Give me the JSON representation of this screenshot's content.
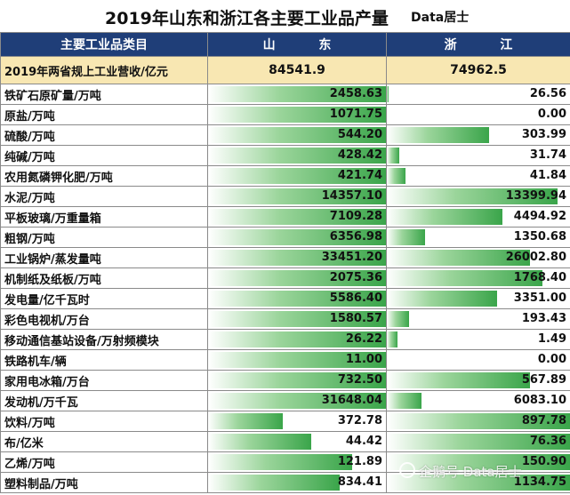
{
  "header": {
    "title": "2019年山东和浙江各主要工业品产量",
    "brand": "Data居士"
  },
  "columns": {
    "category": "主要工业品类目",
    "shandong": "山          东",
    "zhejiang": "浙          江"
  },
  "summary": {
    "label": "2019年两省规上工业营收/亿元",
    "shandong": "84541.9",
    "zhejiang": "74962.5"
  },
  "rows": [
    {
      "name": "铁矿石原矿量/万吨",
      "sd": "2458.63",
      "zj": "26.56",
      "sd_fill": 1.0,
      "zj_fill": 0.01
    },
    {
      "name": "原盐/万吨",
      "sd": "1071.75",
      "zj": "0.00",
      "sd_fill": 1.0,
      "zj_fill": 0.0
    },
    {
      "name": "硫酸/万吨",
      "sd": "544.20",
      "zj": "303.99",
      "sd_fill": 1.0,
      "zj_fill": 0.56
    },
    {
      "name": "纯碱/万吨",
      "sd": "428.42",
      "zj": "31.74",
      "sd_fill": 1.0,
      "zj_fill": 0.07
    },
    {
      "name": "农用氮磷钾化肥/万吨",
      "sd": "421.74",
      "zj": "41.84",
      "sd_fill": 1.0,
      "zj_fill": 0.1
    },
    {
      "name": "水泥/万吨",
      "sd": "14357.10",
      "zj": "13399.94",
      "sd_fill": 1.0,
      "zj_fill": 0.93
    },
    {
      "name": "平板玻璃/万重量箱",
      "sd": "7109.28",
      "zj": "4494.92",
      "sd_fill": 1.0,
      "zj_fill": 0.63
    },
    {
      "name": "粗钢/万吨",
      "sd": "6356.98",
      "zj": "1350.68",
      "sd_fill": 1.0,
      "zj_fill": 0.21
    },
    {
      "name": "工业锅炉/蒸发量吨",
      "sd": "33451.20",
      "zj": "26002.80",
      "sd_fill": 1.0,
      "zj_fill": 0.78
    },
    {
      "name": "机制纸及纸板/万吨",
      "sd": "2075.36",
      "zj": "1768.40",
      "sd_fill": 1.0,
      "zj_fill": 0.85
    },
    {
      "name": "发电量/亿千瓦时",
      "sd": "5586.40",
      "zj": "3351.00",
      "sd_fill": 1.0,
      "zj_fill": 0.6
    },
    {
      "name": "彩色电视机/万台",
      "sd": "1580.57",
      "zj": "193.43",
      "sd_fill": 1.0,
      "zj_fill": 0.12
    },
    {
      "name": "移动通信基站设备/万射频模块",
      "sd": "26.22",
      "zj": "1.49",
      "sd_fill": 1.0,
      "zj_fill": 0.06
    },
    {
      "name": "铁路机车/辆",
      "sd": "11.00",
      "zj": "0.00",
      "sd_fill": 1.0,
      "zj_fill": 0.0
    },
    {
      "name": "家用电冰箱/万台",
      "sd": "732.50",
      "zj": "567.89",
      "sd_fill": 1.0,
      "zj_fill": 0.78
    },
    {
      "name": "发动机/万千瓦",
      "sd": "31648.04",
      "zj": "6083.10",
      "sd_fill": 1.0,
      "zj_fill": 0.19
    },
    {
      "name": "饮料/万吨",
      "sd": "372.78",
      "zj": "897.78",
      "sd_fill": 0.42,
      "zj_fill": 1.0
    },
    {
      "name": "布/亿米",
      "sd": "44.42",
      "zj": "76.36",
      "sd_fill": 0.58,
      "zj_fill": 1.0
    },
    {
      "name": "乙烯/万吨",
      "sd": "121.89",
      "zj": "150.90",
      "sd_fill": 0.81,
      "zj_fill": 1.0
    },
    {
      "name": "塑料制品/万吨",
      "sd": "834.41",
      "zj": "1134.75",
      "sd_fill": 0.74,
      "zj_fill": 1.0
    }
  ],
  "watermark": "企鹅号 Data居士"
}
